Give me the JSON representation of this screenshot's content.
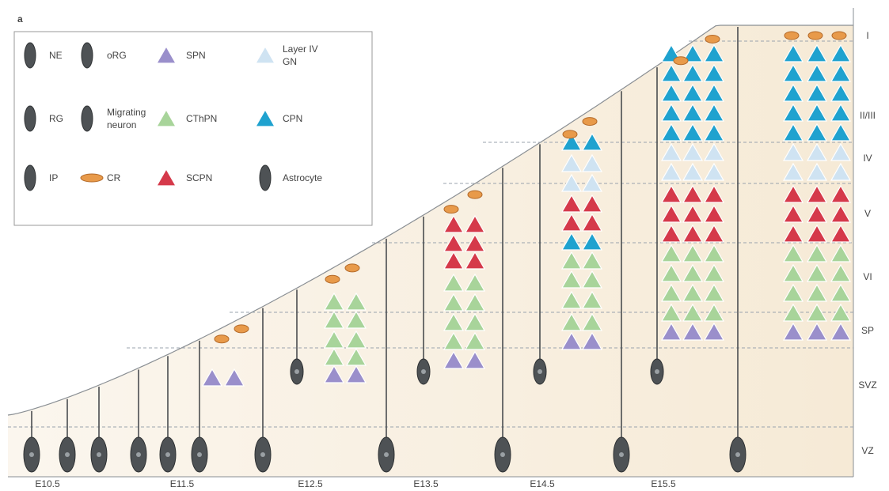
{
  "panel_label": "a",
  "legend": {
    "items": [
      {
        "label": [
          "NE"
        ]
      },
      {
        "label": [
          "oRG"
        ]
      },
      {
        "label": [
          "SPN"
        ]
      },
      {
        "label": [
          "Layer IV",
          "GN"
        ]
      },
      {
        "label": [
          "RG"
        ]
      },
      {
        "label": [
          "Migrating",
          "neuron"
        ]
      },
      {
        "label": [
          "CThPN"
        ]
      },
      {
        "label": [
          "CPN"
        ]
      },
      {
        "label": [
          "IP"
        ]
      },
      {
        "label": [
          "CR"
        ]
      },
      {
        "label": [
          "SCPN"
        ]
      },
      {
        "label": [
          "Astrocyte"
        ]
      }
    ]
  },
  "layers": [
    "I",
    "II/III",
    "IV",
    "V",
    "VI",
    "SP",
    "SVZ",
    "VZ"
  ],
  "stages": [
    "E10.5",
    "E11.5",
    "E12.5",
    "E13.5",
    "E14.5",
    "E15.5"
  ]
}
